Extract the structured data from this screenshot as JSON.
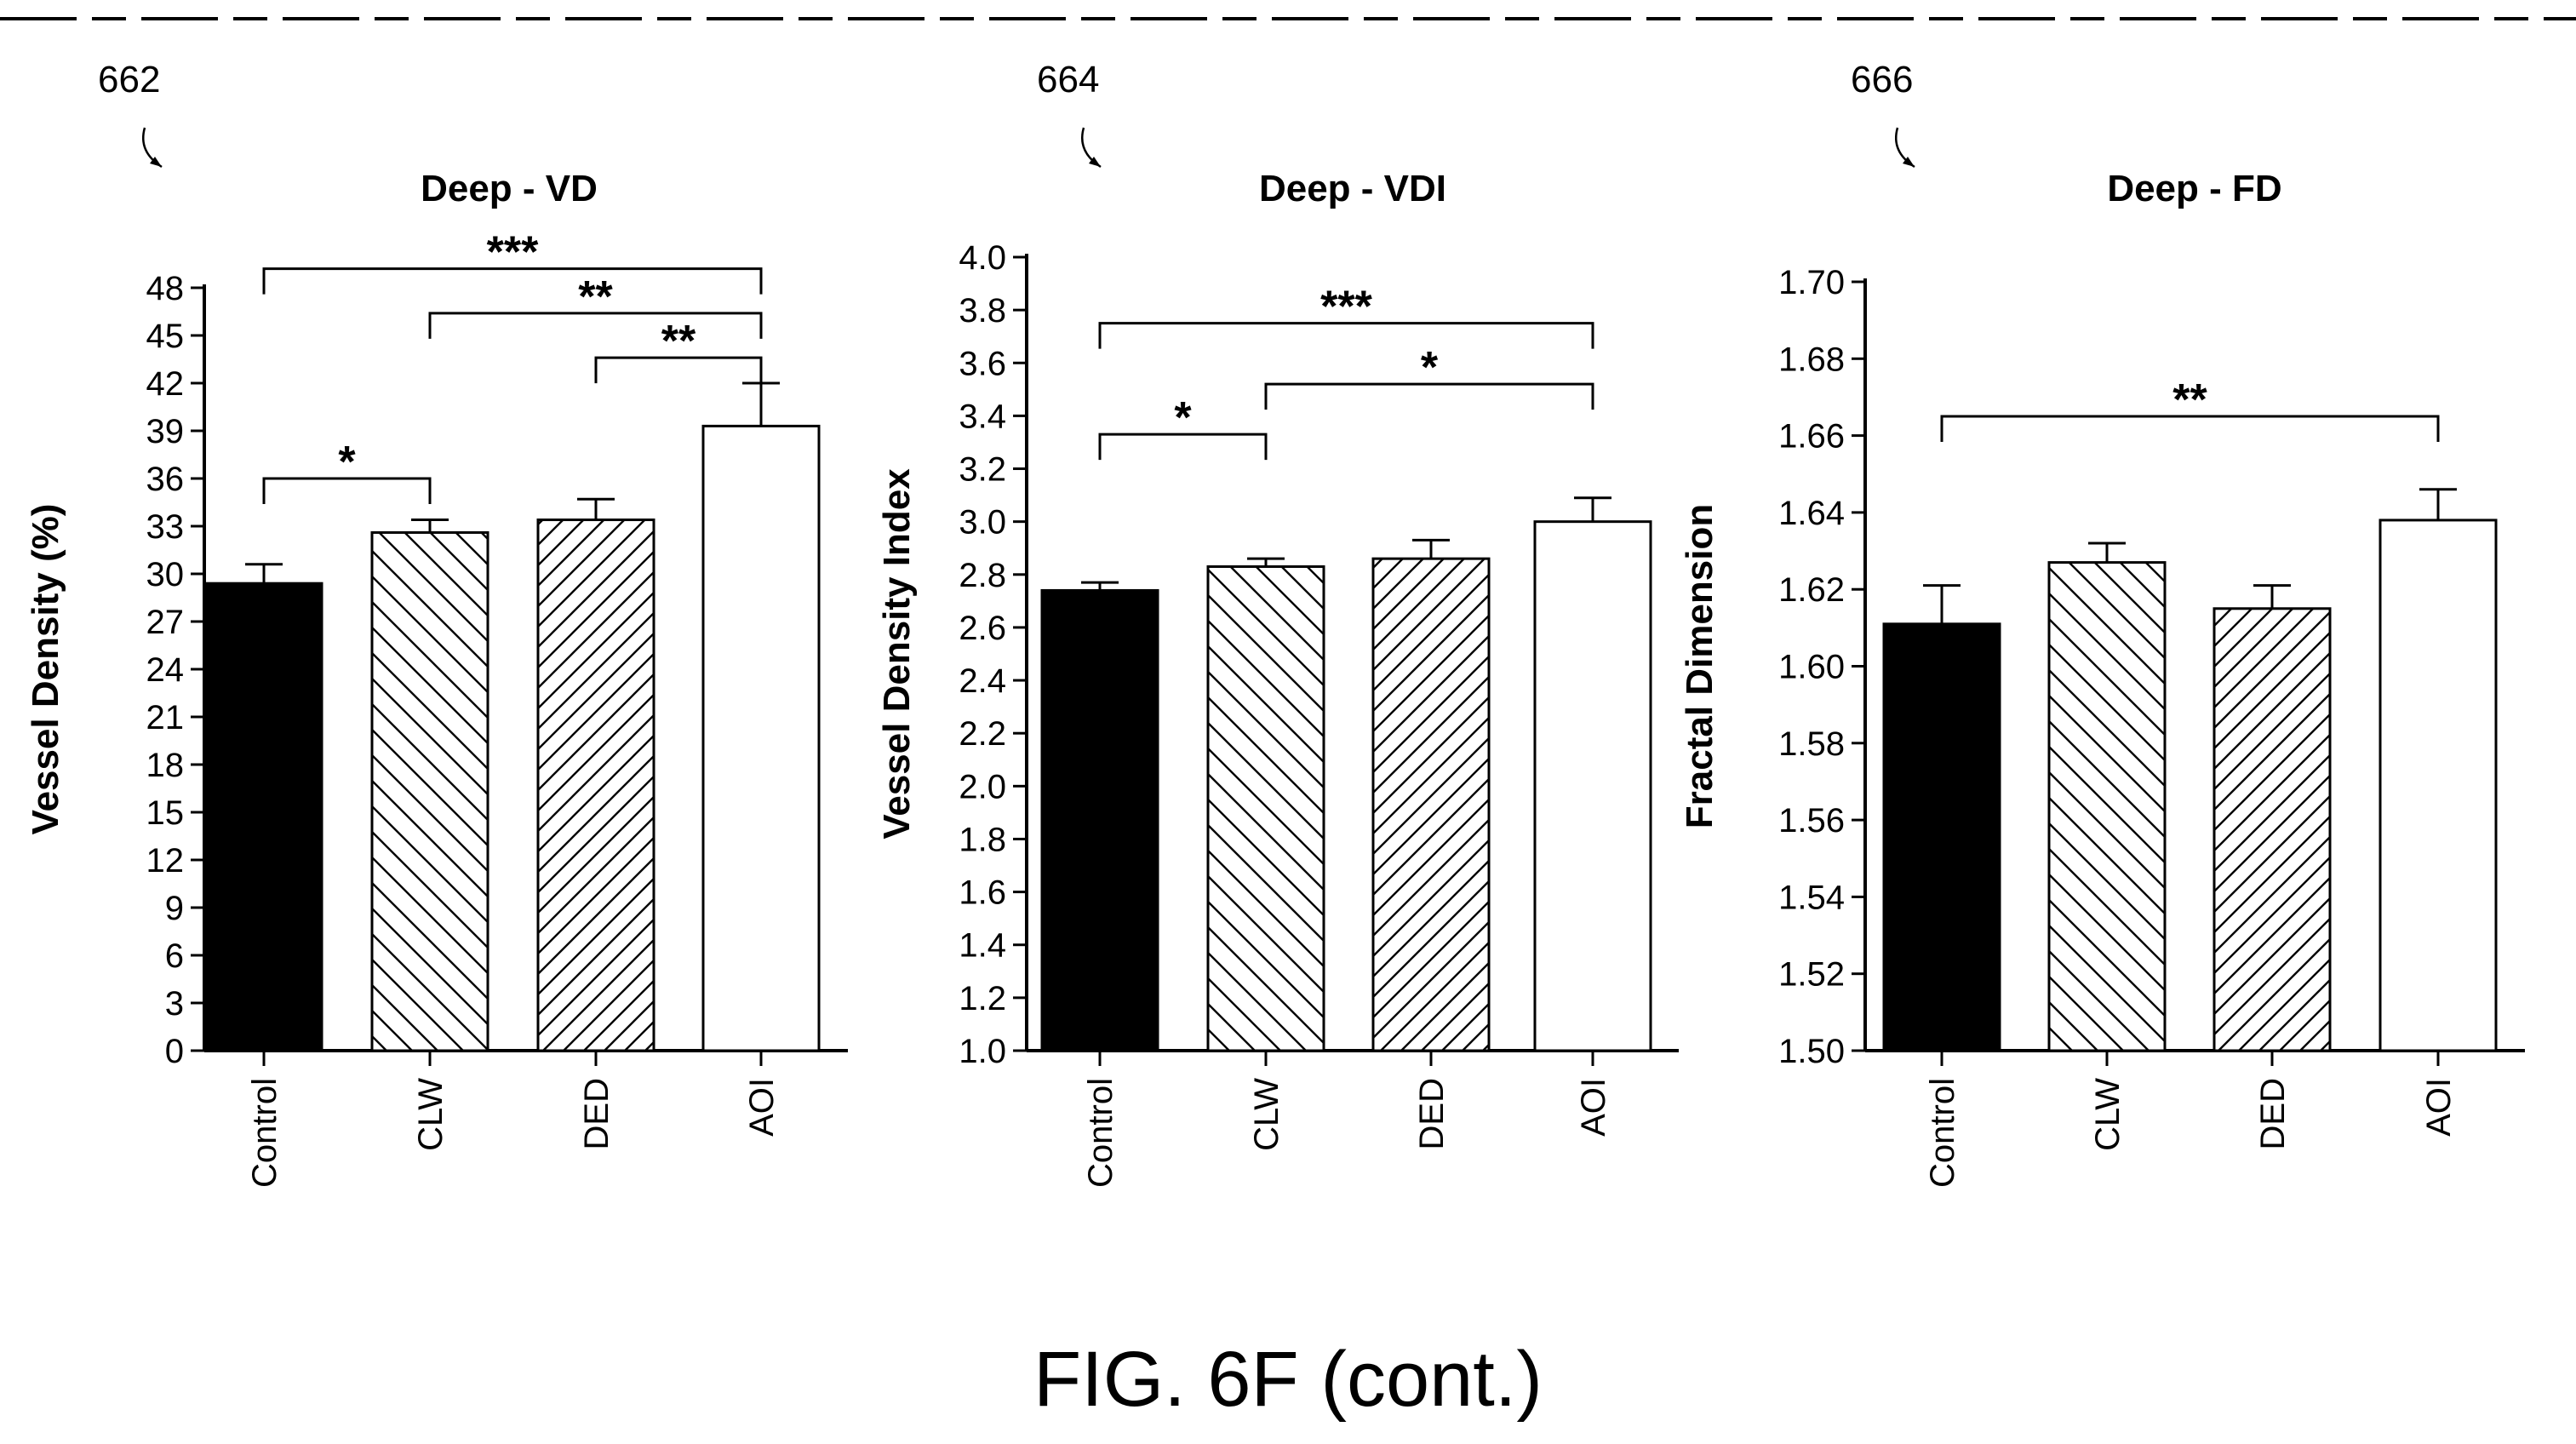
{
  "figure_caption": "FIG. 6F (cont.)",
  "patterns": {
    "Control": "solid",
    "CLW": "hatch-backslash",
    "DED": "hatch-slash",
    "AOI": "open"
  },
  "colors": {
    "ink": "#000000",
    "background": "#ffffff"
  },
  "chart_data": [
    {
      "ref": "662",
      "type": "bar",
      "title": "Deep - VD",
      "ylabel": "Vessel Density (%)",
      "xlabel": "",
      "categories": [
        "Control",
        "CLW",
        "DED",
        "AOI"
      ],
      "values": [
        29.4,
        32.6,
        33.4,
        39.3
      ],
      "errors": [
        1.2,
        0.8,
        1.3,
        2.7
      ],
      "ylim": [
        0,
        48
      ],
      "yticks": [
        0,
        3,
        6,
        9,
        12,
        15,
        18,
        21,
        24,
        27,
        30,
        33,
        36,
        39,
        42,
        45,
        48
      ],
      "yticklabels": [
        "0",
        "3",
        "6",
        "9",
        "12",
        "15",
        "18",
        "21",
        "24",
        "27",
        "30",
        "33",
        "36",
        "39",
        "42",
        "45",
        "48"
      ],
      "grid": false,
      "brackets": [
        {
          "from": "Control",
          "to": "AOI",
          "label": "***",
          "y": 49.2
        },
        {
          "from": "CLW",
          "to": "AOI",
          "label": "**",
          "y": 46.4
        },
        {
          "from": "DED",
          "to": "AOI",
          "label": "**",
          "y": 43.6
        },
        {
          "from": "Control",
          "to": "CLW",
          "label": "*",
          "y": 36.0
        }
      ]
    },
    {
      "ref": "664",
      "type": "bar",
      "title": "Deep - VDI",
      "ylabel": "Vessel Density Index",
      "xlabel": "",
      "categories": [
        "Control",
        "CLW",
        "DED",
        "AOI"
      ],
      "values": [
        2.74,
        2.83,
        2.86,
        3.0
      ],
      "errors": [
        0.03,
        0.03,
        0.07,
        0.09
      ],
      "ylim": [
        1.0,
        4.0
      ],
      "yticks": [
        1.0,
        1.2,
        1.4,
        1.6,
        1.8,
        2.0,
        2.2,
        2.4,
        2.6,
        2.8,
        3.0,
        3.2,
        3.4,
        3.6,
        3.8,
        4.0
      ],
      "yticklabels": [
        "1.0",
        "1.2",
        "1.4",
        "1.6",
        "1.8",
        "2.0",
        "2.2",
        "2.4",
        "2.6",
        "2.8",
        "3.0",
        "3.2",
        "3.4",
        "3.6",
        "3.8",
        "4.0"
      ],
      "grid": false,
      "brackets": [
        {
          "from": "Control",
          "to": "AOI",
          "label": "***",
          "y": 3.75
        },
        {
          "from": "CLW",
          "to": "AOI",
          "label": "*",
          "y": 3.52
        },
        {
          "from": "Control",
          "to": "CLW",
          "label": "*",
          "y": 3.33
        }
      ]
    },
    {
      "ref": "666",
      "type": "bar",
      "title": "Deep - FD",
      "ylabel": "Fractal Dimension",
      "xlabel": "",
      "categories": [
        "Control",
        "CLW",
        "DED",
        "AOI"
      ],
      "values": [
        1.611,
        1.627,
        1.615,
        1.638
      ],
      "errors": [
        0.01,
        0.005,
        0.006,
        0.008
      ],
      "ylim": [
        1.5,
        1.7
      ],
      "yticks": [
        1.5,
        1.52,
        1.54,
        1.56,
        1.58,
        1.6,
        1.62,
        1.64,
        1.66,
        1.68,
        1.7
      ],
      "yticklabels": [
        "1.50",
        "1.52",
        "1.54",
        "1.56",
        "1.58",
        "1.60",
        "1.62",
        "1.64",
        "1.66",
        "1.68",
        "1.70"
      ],
      "grid": false,
      "brackets": [
        {
          "from": "Control",
          "to": "AOI",
          "label": "**",
          "y": 1.665
        }
      ]
    }
  ]
}
